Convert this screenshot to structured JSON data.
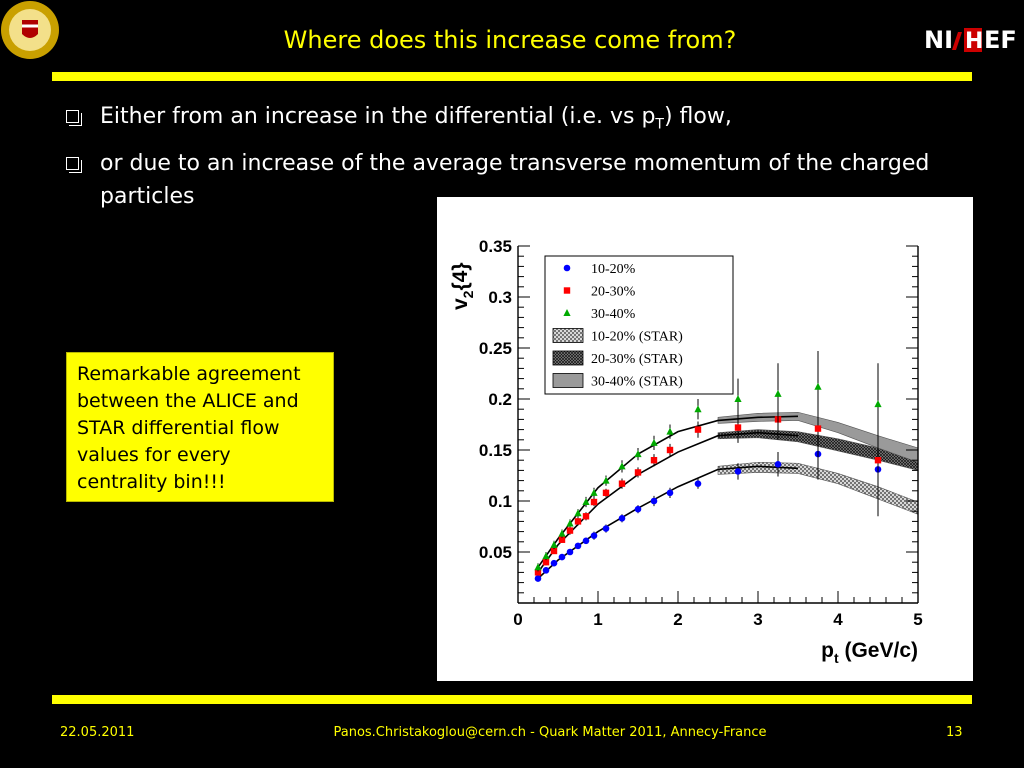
{
  "slide": {
    "title": "Where does this increase come from?",
    "logo_left": "university-seal-icon",
    "logo_right": "NIKHEF",
    "bullets": [
      {
        "pre": "Either from an increase in the differential (i.e. vs p",
        "sub": "T",
        "post": ") flow,"
      },
      {
        "pre": "or due to an increase of the average transverse momentum of the charged particles",
        "sub": "",
        "post": ""
      }
    ],
    "note": "Remarkable agreement between the ALICE and STAR differential flow values for every centrality bin!!!",
    "footer": {
      "date": "22.05.2011",
      "credit": "Panos.Christakoglou@cern.ch - Quark Matter 2011, Annecy-France",
      "page": "13"
    },
    "colors": {
      "background": "#000000",
      "accent": "#ffff00",
      "text": "#ffffff"
    }
  },
  "chart_data": {
    "type": "scatter",
    "xlabel": "p_t (GeV/c)",
    "ylabel": "v_2{4}",
    "xlim": [
      0,
      5
    ],
    "ylim": [
      0,
      0.35
    ],
    "xticks": [
      "0",
      "1",
      "2",
      "3",
      "4",
      "5"
    ],
    "yticks": [
      "0.05",
      "0.1",
      "0.15",
      "0.2",
      "0.25",
      "0.3",
      "0.35"
    ],
    "legend_position": "top-left",
    "grid": false,
    "series": [
      {
        "name": "10-20%",
        "marker": "circle",
        "color": "#0000ff",
        "x": [
          0.25,
          0.35,
          0.45,
          0.55,
          0.65,
          0.75,
          0.85,
          0.95,
          1.1,
          1.3,
          1.5,
          1.7,
          1.9,
          2.25,
          2.75,
          3.25,
          3.75,
          4.5
        ],
        "y": [
          0.024,
          0.032,
          0.039,
          0.045,
          0.05,
          0.056,
          0.061,
          0.066,
          0.073,
          0.083,
          0.092,
          0.1,
          0.108,
          0.117,
          0.129,
          0.136,
          0.146,
          0.131
        ],
        "err": [
          0.003,
          0.003,
          0.003,
          0.003,
          0.003,
          0.003,
          0.003,
          0.004,
          0.004,
          0.004,
          0.004,
          0.005,
          0.005,
          0.005,
          0.008,
          0.012,
          0.025,
          0.045
        ]
      },
      {
        "name": "20-30%",
        "marker": "square",
        "color": "#ff0000",
        "x": [
          0.25,
          0.35,
          0.45,
          0.55,
          0.65,
          0.75,
          0.85,
          0.95,
          1.1,
          1.3,
          1.5,
          1.7,
          1.9,
          2.25,
          2.75,
          3.25,
          3.75,
          4.5
        ],
        "y": [
          0.03,
          0.04,
          0.051,
          0.062,
          0.071,
          0.08,
          0.085,
          0.099,
          0.108,
          0.117,
          0.128,
          0.14,
          0.15,
          0.17,
          0.172,
          0.18,
          0.171,
          0.14
        ],
        "err": [
          0.003,
          0.003,
          0.003,
          0.003,
          0.004,
          0.004,
          0.004,
          0.004,
          0.004,
          0.005,
          0.005,
          0.006,
          0.006,
          0.008,
          0.015,
          0.02,
          0.03,
          0.055
        ]
      },
      {
        "name": "30-40%",
        "marker": "triangle",
        "color": "#00aa00",
        "x": [
          0.25,
          0.35,
          0.45,
          0.55,
          0.65,
          0.75,
          0.85,
          0.95,
          1.1,
          1.3,
          1.5,
          1.7,
          1.9,
          2.25,
          2.75,
          3.25,
          3.75,
          4.5
        ],
        "y": [
          0.035,
          0.046,
          0.057,
          0.068,
          0.078,
          0.088,
          0.099,
          0.108,
          0.12,
          0.134,
          0.146,
          0.157,
          0.168,
          0.19,
          0.2,
          0.205,
          0.212,
          0.195
        ],
        "err": [
          0.004,
          0.004,
          0.004,
          0.004,
          0.004,
          0.004,
          0.005,
          0.005,
          0.005,
          0.006,
          0.006,
          0.007,
          0.007,
          0.01,
          0.02,
          0.03,
          0.035,
          0.04
        ]
      }
    ],
    "bands": [
      {
        "name": "10-20% (STAR)",
        "pattern": "fine-hatch",
        "x": [
          2.5,
          3.0,
          3.5,
          4.0,
          4.5,
          5.0
        ],
        "y": [
          0.13,
          0.133,
          0.132,
          0.122,
          0.108,
          0.093
        ],
        "half_width": [
          0.004,
          0.005,
          0.005,
          0.005,
          0.006,
          0.006
        ]
      },
      {
        "name": "20-30% (STAR)",
        "pattern": "dense-hatch",
        "x": [
          2.5,
          3.0,
          3.5,
          4.0,
          4.5,
          5.0
        ],
        "y": [
          0.164,
          0.166,
          0.163,
          0.155,
          0.146,
          0.137
        ],
        "half_width": [
          0.003,
          0.004,
          0.005,
          0.006,
          0.006,
          0.007
        ]
      },
      {
        "name": "30-40% (STAR)",
        "pattern": "solid-gray",
        "x": [
          2.5,
          3.0,
          3.5,
          4.0,
          4.5,
          5.0
        ],
        "y": [
          0.179,
          0.182,
          0.183,
          0.172,
          0.158,
          0.145
        ],
        "half_width": [
          0.003,
          0.004,
          0.004,
          0.005,
          0.006,
          0.007
        ]
      }
    ],
    "fits": [
      {
        "series": "10-20%",
        "x": [
          0.25,
          0.5,
          1.0,
          1.5,
          2.0,
          2.5,
          3.0,
          3.5
        ],
        "y": [
          0.024,
          0.042,
          0.07,
          0.093,
          0.114,
          0.131,
          0.134,
          0.132
        ]
      },
      {
        "series": "20-30%",
        "x": [
          0.25,
          0.5,
          1.0,
          1.5,
          2.0,
          2.5,
          3.0,
          3.5
        ],
        "y": [
          0.03,
          0.057,
          0.097,
          0.126,
          0.148,
          0.164,
          0.167,
          0.164
        ]
      },
      {
        "series": "30-40%",
        "x": [
          0.25,
          0.5,
          1.0,
          1.5,
          2.0,
          2.5,
          3.0,
          3.5
        ],
        "y": [
          0.035,
          0.063,
          0.113,
          0.146,
          0.168,
          0.179,
          0.182,
          0.183
        ]
      }
    ]
  }
}
